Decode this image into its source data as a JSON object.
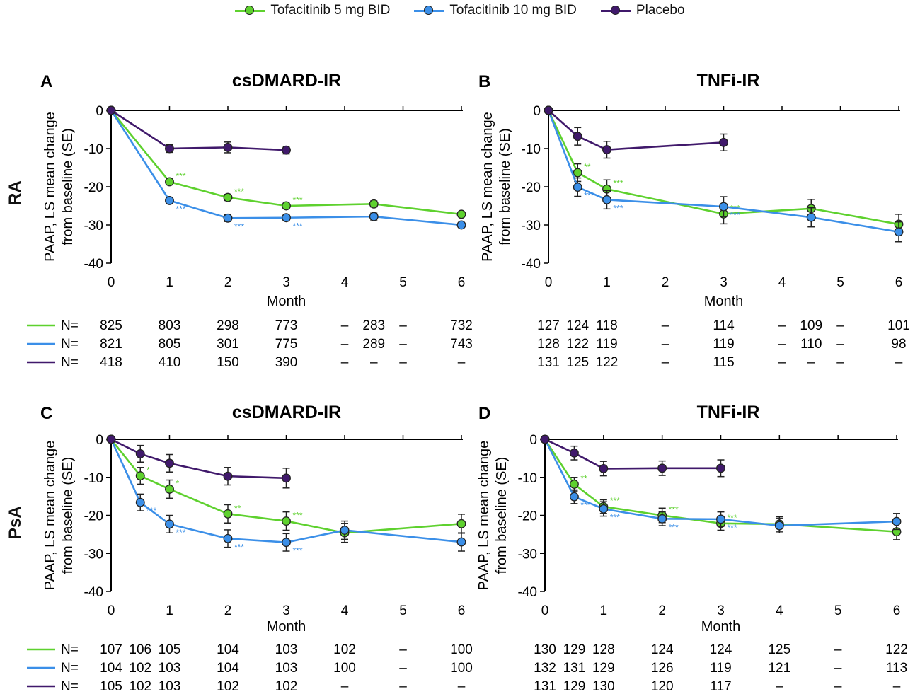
{
  "legend": [
    {
      "label": "Tofacitinib 5 mg BID",
      "color": "#5ed12e"
    },
    {
      "label": "Tofacitinib 10 mg BID",
      "color": "#3b8fe8"
    },
    {
      "label": "Placebo",
      "color": "#40196b"
    }
  ],
  "row_labels": [
    "RA",
    "PsA"
  ],
  "n_label": "N=",
  "chart_data": [
    {
      "type": "line",
      "panel": "A",
      "title": "csDMARD-IR",
      "ylabel": "PAAP, LS mean change from baseline (SE)",
      "xlabel": "Month",
      "ylim": [
        -40,
        0
      ],
      "yticks": [
        0,
        -10,
        -20,
        -30,
        -40
      ],
      "xlim": [
        0,
        6
      ],
      "xticks": [
        0,
        1,
        2,
        3,
        4,
        5,
        6
      ],
      "series": [
        {
          "name": "Tofacitinib 5 mg BID",
          "color": "#5ed12e",
          "points": [
            {
              "x": 0,
              "y": 0,
              "se": 0
            },
            {
              "x": 1,
              "y": -18.7,
              "se": 0.6
            },
            {
              "x": 2,
              "y": -22.8,
              "se": 0.8
            },
            {
              "x": 3,
              "y": -25,
              "se": 0.7
            },
            {
              "x": 4.5,
              "y": -24.5,
              "se": 0.8
            },
            {
              "x": 6,
              "y": -27.2,
              "se": 0.6
            }
          ],
          "sig": [
            {
              "x": 1,
              "text": "***"
            },
            {
              "x": 2,
              "text": "***"
            },
            {
              "x": 3,
              "text": "***"
            }
          ]
        },
        {
          "name": "Tofacitinib 10 mg BID",
          "color": "#3b8fe8",
          "points": [
            {
              "x": 0,
              "y": 0,
              "se": 0
            },
            {
              "x": 1,
              "y": -23.6,
              "se": 0.6
            },
            {
              "x": 2,
              "y": -28.2,
              "se": 0.9
            },
            {
              "x": 3,
              "y": -28.1,
              "se": 0.7
            },
            {
              "x": 4.5,
              "y": -27.8,
              "se": 0.9
            },
            {
              "x": 6,
              "y": -30,
              "se": 0.6
            }
          ],
          "sig": [
            {
              "x": 1,
              "text": "***"
            },
            {
              "x": 2,
              "text": "***"
            },
            {
              "x": 3,
              "text": "***"
            }
          ]
        },
        {
          "name": "Placebo",
          "color": "#40196b",
          "points": [
            {
              "x": 0,
              "y": 0,
              "se": 0
            },
            {
              "x": 1,
              "y": -10,
              "se": 1.0
            },
            {
              "x": 2,
              "y": -9.7,
              "se": 1.4
            },
            {
              "x": 3,
              "y": -10.4,
              "se": 1.0
            }
          ],
          "sig": []
        }
      ],
      "n_table": {
        "columns": [
          0,
          1,
          2,
          3,
          4,
          4.5,
          5,
          6
        ],
        "rows": [
          [
            "825",
            "803",
            "298",
            "773",
            "–",
            "283",
            "–",
            "732"
          ],
          [
            "821",
            "805",
            "301",
            "775",
            "–",
            "289",
            "–",
            "743"
          ],
          [
            "418",
            "410",
            "150",
            "390",
            "–",
            "–",
            "–",
            "–"
          ]
        ]
      }
    },
    {
      "type": "line",
      "panel": "B",
      "title": "TNFi-IR",
      "ylabel": "PAAP, LS mean change from baseline (SE)",
      "xlabel": "Month",
      "ylim": [
        -40,
        0
      ],
      "yticks": [
        0,
        -10,
        -20,
        -30,
        -40
      ],
      "xlim": [
        0,
        6
      ],
      "xticks": [
        0,
        1,
        2,
        3,
        4,
        5,
        6
      ],
      "series": [
        {
          "name": "Tofacitinib 5 mg BID",
          "color": "#5ed12e",
          "points": [
            {
              "x": 0,
              "y": 0,
              "se": 0
            },
            {
              "x": 0.5,
              "y": -16.3,
              "se": 2.3
            },
            {
              "x": 1,
              "y": -20.6,
              "se": 2.4
            },
            {
              "x": 3,
              "y": -27.1,
              "se": 2.6
            },
            {
              "x": 4.5,
              "y": -25.7,
              "se": 2.4
            },
            {
              "x": 6,
              "y": -29.8,
              "se": 2.6
            }
          ],
          "sig": [
            {
              "x": 0.5,
              "text": "**"
            },
            {
              "x": 1,
              "text": "***"
            },
            {
              "x": 3,
              "text": "***"
            }
          ]
        },
        {
          "name": "Tofacitinib 10 mg BID",
          "color": "#3b8fe8",
          "points": [
            {
              "x": 0,
              "y": 0,
              "se": 0
            },
            {
              "x": 0.5,
              "y": -20.1,
              "se": 2.4
            },
            {
              "x": 1,
              "y": -23.4,
              "se": 2.4
            },
            {
              "x": 3,
              "y": -25.2,
              "se": 2.6
            },
            {
              "x": 4.5,
              "y": -28,
              "se": 2.5
            },
            {
              "x": 6,
              "y": -31.8,
              "se": 2.6
            }
          ],
          "sig": [
            {
              "x": 0.5,
              "text": "***"
            },
            {
              "x": 1,
              "text": "***"
            },
            {
              "x": 3,
              "text": "***"
            }
          ]
        },
        {
          "name": "Placebo",
          "color": "#40196b",
          "points": [
            {
              "x": 0,
              "y": 0,
              "se": 0
            },
            {
              "x": 0.5,
              "y": -6.8,
              "se": 2.3
            },
            {
              "x": 1,
              "y": -10.3,
              "se": 2.2
            },
            {
              "x": 3,
              "y": -8.4,
              "se": 2.2
            }
          ],
          "sig": []
        }
      ],
      "n_table": {
        "columns": [
          0,
          0.5,
          1,
          2,
          3,
          4,
          4.5,
          5,
          6
        ],
        "rows": [
          [
            "127",
            "124",
            "118",
            "–",
            "114",
            "–",
            "109",
            "–",
            "101"
          ],
          [
            "128",
            "122",
            "119",
            "–",
            "119",
            "–",
            "110",
            "–",
            "98"
          ],
          [
            "131",
            "125",
            "122",
            "–",
            "115",
            "–",
            "–",
            "–",
            "–"
          ]
        ]
      }
    },
    {
      "type": "line",
      "panel": "C",
      "title": "csDMARD-IR",
      "ylabel": "PAAP, LS mean change from baseline (SE)",
      "xlabel": "Month",
      "ylim": [
        -40,
        0
      ],
      "yticks": [
        0,
        -10,
        -20,
        -30,
        -40
      ],
      "xlim": [
        0,
        6
      ],
      "xticks": [
        0,
        1,
        2,
        3,
        4,
        5,
        6
      ],
      "series": [
        {
          "name": "Tofacitinib 5 mg BID",
          "color": "#5ed12e",
          "points": [
            {
              "x": 0,
              "y": 0,
              "se": 0
            },
            {
              "x": 0.5,
              "y": -9.6,
              "se": 2.2
            },
            {
              "x": 1,
              "y": -13.1,
              "se": 2.4
            },
            {
              "x": 2,
              "y": -19.6,
              "se": 2.4
            },
            {
              "x": 3,
              "y": -21.5,
              "se": 2.4
            },
            {
              "x": 4,
              "y": -24.6,
              "se": 2.5
            },
            {
              "x": 6,
              "y": -22.2,
              "se": 2.5
            }
          ],
          "sig": [
            {
              "x": 0.5,
              "text": "*"
            },
            {
              "x": 1,
              "text": "*"
            },
            {
              "x": 2,
              "text": "**"
            },
            {
              "x": 3,
              "text": "***"
            }
          ]
        },
        {
          "name": "Tofacitinib 10 mg BID",
          "color": "#3b8fe8",
          "points": [
            {
              "x": 0,
              "y": 0,
              "se": 0
            },
            {
              "x": 0.5,
              "y": -16.6,
              "se": 2.2
            },
            {
              "x": 1,
              "y": -22.3,
              "se": 2.3
            },
            {
              "x": 2,
              "y": -26.1,
              "se": 2.3
            },
            {
              "x": 3,
              "y": -27.1,
              "se": 2.3
            },
            {
              "x": 4,
              "y": -23.9,
              "se": 2.4
            },
            {
              "x": 6,
              "y": -27,
              "se": 2.4
            }
          ],
          "sig": [
            {
              "x": 0.5,
              "text": "***"
            },
            {
              "x": 1,
              "text": "***"
            },
            {
              "x": 2,
              "text": "***"
            },
            {
              "x": 3,
              "text": "***"
            }
          ]
        },
        {
          "name": "Placebo",
          "color": "#40196b",
          "points": [
            {
              "x": 0,
              "y": 0,
              "se": 0
            },
            {
              "x": 0.5,
              "y": -3.8,
              "se": 2.2
            },
            {
              "x": 1,
              "y": -6.3,
              "se": 2.3
            },
            {
              "x": 2,
              "y": -9.7,
              "se": 2.3
            },
            {
              "x": 3,
              "y": -10.2,
              "se": 2.6
            }
          ],
          "sig": []
        }
      ],
      "n_table": {
        "columns": [
          0,
          0.5,
          1,
          2,
          3,
          4,
          5,
          6
        ],
        "rows": [
          [
            "107",
            "106",
            "105",
            "104",
            "103",
            "102",
            "–",
            "100"
          ],
          [
            "104",
            "102",
            "103",
            "104",
            "103",
            "100",
            "–",
            "100"
          ],
          [
            "105",
            "102",
            "103",
            "102",
            "102",
            "–",
            "–",
            "–"
          ]
        ]
      }
    },
    {
      "type": "line",
      "panel": "D",
      "title": "TNFi-IR",
      "ylabel": "PAAP, LS mean change from baseline (SE)",
      "xlabel": "Month",
      "ylim": [
        -40,
        0
      ],
      "yticks": [
        0,
        -10,
        -20,
        -30,
        -40
      ],
      "xlim": [
        0,
        6
      ],
      "xticks": [
        0,
        1,
        2,
        3,
        4,
        5,
        6
      ],
      "series": [
        {
          "name": "Tofacitinib 5 mg BID",
          "color": "#5ed12e",
          "points": [
            {
              "x": 0,
              "y": 0,
              "se": 0
            },
            {
              "x": 0.5,
              "y": -11.8,
              "se": 1.8
            },
            {
              "x": 1,
              "y": -17.7,
              "se": 1.8
            },
            {
              "x": 2,
              "y": -20,
              "se": 1.9
            },
            {
              "x": 3,
              "y": -22.1,
              "se": 1.8
            },
            {
              "x": 4,
              "y": -22.3,
              "se": 1.9
            },
            {
              "x": 6,
              "y": -24.3,
              "se": 2.1
            }
          ],
          "sig": [
            {
              "x": 0.5,
              "text": "**"
            },
            {
              "x": 1,
              "text": "***"
            },
            {
              "x": 2,
              "text": "***"
            },
            {
              "x": 3,
              "text": "***"
            }
          ]
        },
        {
          "name": "Tofacitinib 10 mg BID",
          "color": "#3b8fe8",
          "points": [
            {
              "x": 0,
              "y": 0,
              "se": 0
            },
            {
              "x": 0.5,
              "y": -15.1,
              "se": 1.8
            },
            {
              "x": 1,
              "y": -18.3,
              "se": 1.9
            },
            {
              "x": 2,
              "y": -20.9,
              "se": 1.8
            },
            {
              "x": 3,
              "y": -21,
              "se": 1.9
            },
            {
              "x": 4,
              "y": -22.7,
              "se": 1.9
            },
            {
              "x": 6,
              "y": -21.6,
              "se": 2.1
            }
          ],
          "sig": [
            {
              "x": 0.5,
              "text": "***"
            },
            {
              "x": 1,
              "text": "***"
            },
            {
              "x": 2,
              "text": "***"
            },
            {
              "x": 3,
              "text": "***"
            }
          ]
        },
        {
          "name": "Placebo",
          "color": "#40196b",
          "points": [
            {
              "x": 0,
              "y": 0,
              "se": 0
            },
            {
              "x": 0.5,
              "y": -3.6,
              "se": 1.8
            },
            {
              "x": 1,
              "y": -7.7,
              "se": 1.9
            },
            {
              "x": 2,
              "y": -7.6,
              "se": 1.9
            },
            {
              "x": 3,
              "y": -7.6,
              "se": 2.2
            }
          ],
          "sig": []
        }
      ],
      "n_table": {
        "columns": [
          0,
          0.5,
          1,
          2,
          3,
          4,
          5,
          6
        ],
        "rows": [
          [
            "130",
            "129",
            "128",
            "124",
            "124",
            "125",
            "–",
            "122"
          ],
          [
            "132",
            "131",
            "129",
            "126",
            "119",
            "121",
            "–",
            "113"
          ],
          [
            "131",
            "129",
            "130",
            "120",
            "117",
            "–",
            "–",
            "–"
          ]
        ]
      }
    }
  ]
}
